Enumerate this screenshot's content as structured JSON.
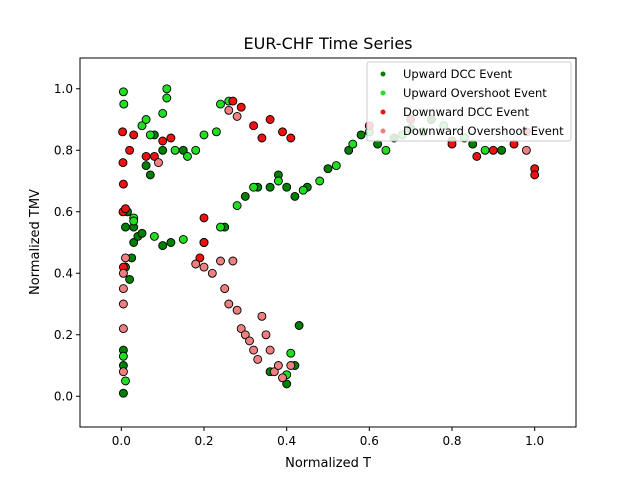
{
  "chart_data": {
    "type": "scatter",
    "title": "EUR-CHF Time Series",
    "xlabel": "Normalized T",
    "ylabel": "Normalized TMV",
    "xlim": [
      -0.1,
      1.1
    ],
    "ylim": [
      -0.1,
      1.1
    ],
    "xticks": [
      "0.0",
      "0.2",
      "0.4",
      "0.6",
      "0.8",
      "1.0"
    ],
    "yticks": [
      "0.0",
      "0.2",
      "0.4",
      "0.6",
      "0.8",
      "1.0"
    ],
    "xtick_values": [
      0.0,
      0.2,
      0.4,
      0.6,
      0.8,
      1.0
    ],
    "ytick_values": [
      0.0,
      0.2,
      0.4,
      0.6,
      0.8,
      1.0
    ],
    "grid": false,
    "legend_position": "top-right",
    "series": [
      {
        "name": "Upward DCC Event",
        "color": "#008000",
        "points": [
          [
            0.005,
            0.01
          ],
          [
            0.005,
            0.1
          ],
          [
            0.005,
            0.15
          ],
          [
            0.01,
            0.42
          ],
          [
            0.01,
            0.55
          ],
          [
            0.015,
            0.6
          ],
          [
            0.02,
            0.38
          ],
          [
            0.025,
            0.45
          ],
          [
            0.03,
            0.5
          ],
          [
            0.03,
            0.55
          ],
          [
            0.04,
            0.52
          ],
          [
            0.05,
            0.53
          ],
          [
            0.06,
            0.75
          ],
          [
            0.07,
            0.72
          ],
          [
            0.08,
            0.85
          ],
          [
            0.1,
            0.8
          ],
          [
            0.1,
            0.49
          ],
          [
            0.12,
            0.5
          ],
          [
            0.15,
            0.8
          ],
          [
            0.2,
            0.5
          ],
          [
            0.25,
            0.55
          ],
          [
            0.3,
            0.65
          ],
          [
            0.33,
            0.68
          ],
          [
            0.36,
            0.68
          ],
          [
            0.38,
            0.72
          ],
          [
            0.4,
            0.68
          ],
          [
            0.42,
            0.65
          ],
          [
            0.45,
            0.68
          ],
          [
            0.5,
            0.74
          ],
          [
            0.55,
            0.8
          ],
          [
            0.58,
            0.85
          ],
          [
            0.62,
            0.82
          ],
          [
            0.66,
            0.84
          ],
          [
            0.7,
            0.87
          ],
          [
            0.75,
            0.9
          ],
          [
            0.8,
            0.83
          ],
          [
            0.85,
            0.82
          ],
          [
            0.92,
            0.8
          ],
          [
            0.36,
            0.08
          ],
          [
            0.4,
            0.04
          ],
          [
            0.43,
            0.23
          ],
          [
            0.42,
            0.1
          ]
        ]
      },
      {
        "name": "Upward Overshoot Event",
        "color": "#22dd22",
        "points": [
          [
            0.005,
            0.99
          ],
          [
            0.006,
            0.95
          ],
          [
            0.005,
            0.13
          ],
          [
            0.01,
            0.05
          ],
          [
            0.03,
            0.58
          ],
          [
            0.05,
            0.88
          ],
          [
            0.06,
            0.9
          ],
          [
            0.07,
            0.85
          ],
          [
            0.1,
            0.92
          ],
          [
            0.11,
            1.0
          ],
          [
            0.11,
            0.97
          ],
          [
            0.13,
            0.8
          ],
          [
            0.16,
            0.78
          ],
          [
            0.18,
            0.8
          ],
          [
            0.2,
            0.85
          ],
          [
            0.23,
            0.86
          ],
          [
            0.24,
            0.95
          ],
          [
            0.26,
            0.96
          ],
          [
            0.03,
            0.57
          ],
          [
            0.08,
            0.52
          ],
          [
            0.15,
            0.51
          ],
          [
            0.2,
            0.5
          ],
          [
            0.24,
            0.55
          ],
          [
            0.28,
            0.62
          ],
          [
            0.32,
            0.68
          ],
          [
            0.38,
            0.7
          ],
          [
            0.44,
            0.67
          ],
          [
            0.48,
            0.7
          ],
          [
            0.52,
            0.75
          ],
          [
            0.56,
            0.82
          ],
          [
            0.6,
            0.86
          ],
          [
            0.64,
            0.8
          ],
          [
            0.68,
            0.85
          ],
          [
            0.73,
            0.86
          ],
          [
            0.78,
            0.88
          ],
          [
            0.83,
            0.84
          ],
          [
            0.88,
            0.8
          ],
          [
            0.4,
            0.07
          ],
          [
            0.41,
            0.14
          ]
        ]
      },
      {
        "name": "Downward DCC Event",
        "color": "#ee1111",
        "points": [
          [
            0.003,
            0.86
          ],
          [
            0.004,
            0.76
          ],
          [
            0.005,
            0.69
          ],
          [
            0.004,
            0.6
          ],
          [
            0.01,
            0.61
          ],
          [
            0.005,
            0.42
          ],
          [
            0.02,
            0.8
          ],
          [
            0.03,
            0.85
          ],
          [
            0.06,
            0.78
          ],
          [
            0.08,
            0.78
          ],
          [
            0.1,
            0.83
          ],
          [
            0.12,
            0.84
          ],
          [
            0.19,
            0.45
          ],
          [
            0.2,
            0.58
          ],
          [
            0.2,
            0.5
          ],
          [
            0.27,
            0.96
          ],
          [
            0.29,
            0.94
          ],
          [
            0.32,
            0.88
          ],
          [
            0.34,
            0.84
          ],
          [
            0.36,
            0.9
          ],
          [
            0.39,
            0.86
          ],
          [
            0.41,
            0.84
          ],
          [
            0.6,
            0.88
          ],
          [
            0.7,
            0.9
          ],
          [
            0.8,
            0.82
          ],
          [
            0.86,
            0.78
          ],
          [
            0.9,
            0.8
          ],
          [
            0.95,
            0.82
          ],
          [
            0.98,
            0.86
          ],
          [
            1.0,
            0.74
          ],
          [
            1.0,
            0.72
          ]
        ]
      },
      {
        "name": "Downward Overshoot Event",
        "color": "#f08080",
        "points": [
          [
            0.005,
            0.4
          ],
          [
            0.005,
            0.35
          ],
          [
            0.005,
            0.3
          ],
          [
            0.005,
            0.22
          ],
          [
            0.005,
            0.08
          ],
          [
            0.01,
            0.45
          ],
          [
            0.18,
            0.43
          ],
          [
            0.2,
            0.42
          ],
          [
            0.22,
            0.4
          ],
          [
            0.24,
            0.44
          ],
          [
            0.25,
            0.35
          ],
          [
            0.26,
            0.3
          ],
          [
            0.28,
            0.28
          ],
          [
            0.29,
            0.22
          ],
          [
            0.3,
            0.2
          ],
          [
            0.31,
            0.18
          ],
          [
            0.32,
            0.15
          ],
          [
            0.33,
            0.12
          ],
          [
            0.34,
            0.26
          ],
          [
            0.35,
            0.2
          ],
          [
            0.36,
            0.15
          ],
          [
            0.37,
            0.08
          ],
          [
            0.38,
            0.1
          ],
          [
            0.39,
            0.06
          ],
          [
            0.41,
            0.1
          ],
          [
            0.27,
            0.44
          ],
          [
            0.09,
            0.76
          ],
          [
            0.26,
            0.93
          ],
          [
            0.28,
            0.91
          ],
          [
            0.98,
            0.8
          ]
        ]
      }
    ]
  }
}
